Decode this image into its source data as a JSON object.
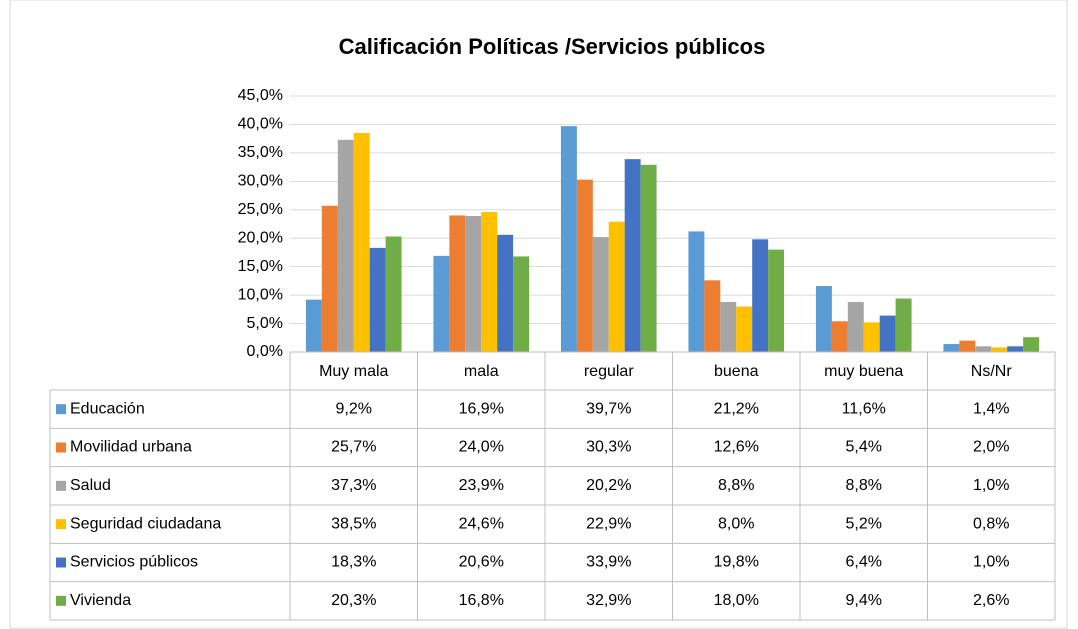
{
  "chart_data": {
    "type": "bar",
    "title": "Calificación Políticas /Servicios públicos",
    "categories": [
      "Muy mala",
      "mala",
      "regular",
      "buena",
      "muy buena",
      "Ns/Nr"
    ],
    "series": [
      {
        "name": "Educación",
        "color": "#5b9bd5",
        "values": [
          9.2,
          16.9,
          39.7,
          21.2,
          11.6,
          1.4
        ],
        "value_labels": [
          "9,2%",
          "16,9%",
          "39,7%",
          "21,2%",
          "11,6%",
          "1,4%"
        ]
      },
      {
        "name": "Movilidad urbana",
        "color": "#ed7d31",
        "values": [
          25.7,
          24.0,
          30.3,
          12.6,
          5.4,
          2.0
        ],
        "value_labels": [
          "25,7%",
          "24,0%",
          "30,3%",
          "12,6%",
          "5,4%",
          "2,0%"
        ]
      },
      {
        "name": "Salud",
        "color": "#a5a5a5",
        "values": [
          37.3,
          23.9,
          20.2,
          8.8,
          8.8,
          1.0
        ],
        "value_labels": [
          "37,3%",
          "23,9%",
          "20,2%",
          "8,8%",
          "8,8%",
          "1,0%"
        ]
      },
      {
        "name": "Seguridad ciudadana",
        "color": "#ffc000",
        "values": [
          38.5,
          24.6,
          22.9,
          8.0,
          5.2,
          0.8
        ],
        "value_labels": [
          "38,5%",
          "24,6%",
          "22,9%",
          "8,0%",
          "5,2%",
          "0,8%"
        ]
      },
      {
        "name": "Servicios públicos",
        "color": "#4472c4",
        "values": [
          18.3,
          20.6,
          33.9,
          19.8,
          6.4,
          1.0
        ],
        "value_labels": [
          "18,3%",
          "20,6%",
          "33,9%",
          "19,8%",
          "6,4%",
          "1,0%"
        ]
      },
      {
        "name": "Vivienda",
        "color": "#70ad47",
        "values": [
          20.3,
          16.8,
          32.9,
          18.0,
          9.4,
          2.6
        ],
        "value_labels": [
          "20,3%",
          "16,8%",
          "32,9%",
          "18,0%",
          "9,4%",
          "2,6%"
        ]
      }
    ],
    "ylim": [
      0,
      45
    ],
    "yticks": [
      {
        "value": 0,
        "label": "0,0%"
      },
      {
        "value": 5,
        "label": "5,0%"
      },
      {
        "value": 10,
        "label": "10,0%"
      },
      {
        "value": 15,
        "label": "15,0%"
      },
      {
        "value": 20,
        "label": "20,0%"
      },
      {
        "value": 25,
        "label": "25,0%"
      },
      {
        "value": 30,
        "label": "30,0%"
      },
      {
        "value": 35,
        "label": "35,0%"
      },
      {
        "value": 40,
        "label": "40,0%"
      },
      {
        "value": 45,
        "label": "45,0%"
      }
    ],
    "grid": true
  }
}
